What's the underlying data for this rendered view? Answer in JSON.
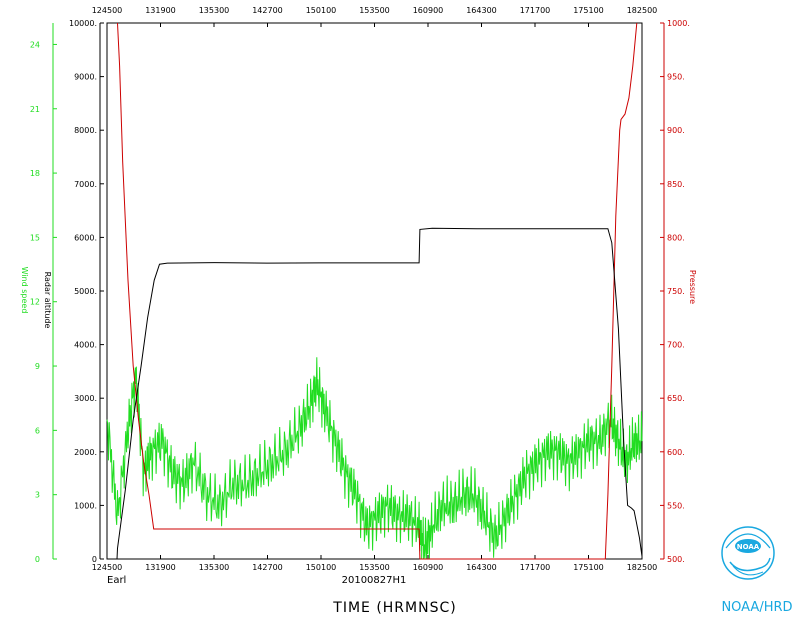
{
  "chart_data": {
    "type": "line",
    "storm_name": "Earl",
    "flight_id": "20100827H1",
    "xlabel": "TIME (HRMNSC)",
    "x_ticks": [
      "124500",
      "131900",
      "135300",
      "142700",
      "150100",
      "153500",
      "160900",
      "164300",
      "171700",
      "175100",
      "182500"
    ],
    "x_tick_seconds": [
      45900,
      47940,
      49980,
      52020,
      54060,
      56100,
      58140,
      60180,
      62220,
      64260,
      66300
    ],
    "xlim": [
      45900,
      66300
    ],
    "axes": {
      "altitude": {
        "label": "Radar altitude",
        "color": "#000000",
        "ylim": [
          0,
          10000
        ],
        "ticks": [
          "0",
          "1000.",
          "2000.",
          "3000.",
          "4000.",
          "5000.",
          "6000.",
          "7000.",
          "8000.",
          "9000.",
          "10000."
        ]
      },
      "wind": {
        "label": "Wind speed",
        "color": "#22dd22",
        "ylim": [
          0,
          25
        ],
        "ticks": [
          "0",
          "3",
          "6",
          "9",
          "12",
          "15",
          "18",
          "21",
          "24"
        ]
      },
      "pressure": {
        "label": "Pressure",
        "color": "#cc0000",
        "ylim": [
          500,
          1000
        ],
        "ticks": [
          "500.",
          "550.",
          "600.",
          "650.",
          "700.",
          "750.",
          "800.",
          "850.",
          "900.",
          "950.",
          "1000."
        ]
      }
    },
    "series": [
      {
        "name": "Radar altitude",
        "axis": "altitude",
        "color": "#000000",
        "points": [
          [
            46280,
            0
          ],
          [
            46300,
            200
          ],
          [
            46600,
            1300
          ],
          [
            46900,
            2600
          ],
          [
            47200,
            3600
          ],
          [
            47450,
            4500
          ],
          [
            47700,
            5200
          ],
          [
            47900,
            5500
          ],
          [
            48200,
            5520
          ],
          [
            50000,
            5530
          ],
          [
            52000,
            5520
          ],
          [
            54000,
            5525
          ],
          [
            56000,
            5525
          ],
          [
            57800,
            5525
          ],
          [
            57830,
            6150
          ],
          [
            58300,
            6170
          ],
          [
            60000,
            6160
          ],
          [
            62000,
            6160
          ],
          [
            64000,
            6160
          ],
          [
            65000,
            6160
          ],
          [
            65150,
            5900
          ],
          [
            65400,
            4300
          ],
          [
            65600,
            2200
          ],
          [
            65750,
            1000
          ],
          [
            65900,
            950
          ],
          [
            66000,
            900
          ],
          [
            66200,
            400
          ],
          [
            66300,
            50
          ]
        ]
      },
      {
        "name": "Pressure",
        "axis": "pressure",
        "color": "#cc0000",
        "points": [
          [
            46300,
            1000
          ],
          [
            46380,
            960
          ],
          [
            46500,
            870
          ],
          [
            46700,
            760
          ],
          [
            46900,
            680
          ],
          [
            47100,
            630
          ],
          [
            47300,
            590
          ],
          [
            47500,
            560
          ],
          [
            47680,
            528
          ],
          [
            50000,
            528
          ],
          [
            54000,
            528
          ],
          [
            57800,
            528
          ],
          [
            57830,
            500
          ],
          [
            59000,
            500
          ],
          [
            62000,
            500
          ],
          [
            64000,
            500
          ],
          [
            64900,
            500
          ],
          [
            65000,
            560
          ],
          [
            65150,
            680
          ],
          [
            65300,
            820
          ],
          [
            65450,
            900
          ],
          [
            65500,
            910
          ],
          [
            65650,
            915
          ],
          [
            65800,
            930
          ],
          [
            65950,
            960
          ],
          [
            66100,
            1000
          ]
        ]
      },
      {
        "name": "Wind speed",
        "axis": "wind",
        "color": "#22dd22",
        "points": [
          [
            45900,
            6.5
          ],
          [
            46300,
            2.0
          ],
          [
            46700,
            6.0
          ],
          [
            47000,
            8.5
          ],
          [
            47300,
            4.0
          ],
          [
            47600,
            5.0
          ],
          [
            48000,
            5.5
          ],
          [
            48400,
            4.0
          ],
          [
            48800,
            3.5
          ],
          [
            49200,
            4.5
          ],
          [
            49700,
            3.0
          ],
          [
            50200,
            2.5
          ],
          [
            50700,
            3.5
          ],
          [
            51200,
            3.5
          ],
          [
            51700,
            4.0
          ],
          [
            52200,
            4.5
          ],
          [
            52700,
            5.0
          ],
          [
            53200,
            6.0
          ],
          [
            53600,
            7.0
          ],
          [
            53900,
            8.2
          ],
          [
            54200,
            7.0
          ],
          [
            54600,
            5.5
          ],
          [
            55000,
            4.0
          ],
          [
            55400,
            3.0
          ],
          [
            55800,
            1.5
          ],
          [
            56200,
            2.0
          ],
          [
            56600,
            2.5
          ],
          [
            57000,
            2.0
          ],
          [
            57400,
            2.0
          ],
          [
            57800,
            1.5
          ],
          [
            58000,
            0.5
          ],
          [
            58300,
            1.5
          ],
          [
            58700,
            2.5
          ],
          [
            59100,
            2.5
          ],
          [
            59500,
            3.0
          ],
          [
            59900,
            3.0
          ],
          [
            60300,
            2.0
          ],
          [
            60700,
            1.0
          ],
          [
            61100,
            2.0
          ],
          [
            61500,
            3.0
          ],
          [
            61900,
            4.0
          ],
          [
            62300,
            4.5
          ],
          [
            62700,
            5.0
          ],
          [
            63100,
            5.0
          ],
          [
            63500,
            4.5
          ],
          [
            63900,
            5.0
          ],
          [
            64300,
            5.5
          ],
          [
            64700,
            5.5
          ],
          [
            65100,
            6.5
          ],
          [
            65400,
            5.5
          ],
          [
            65700,
            4.5
          ],
          [
            66000,
            5.5
          ],
          [
            66300,
            5.5
          ]
        ]
      }
    ],
    "grid": false
  },
  "logo": {
    "caption": "NOAA/HRD",
    "emblem_text": "NOAA"
  }
}
